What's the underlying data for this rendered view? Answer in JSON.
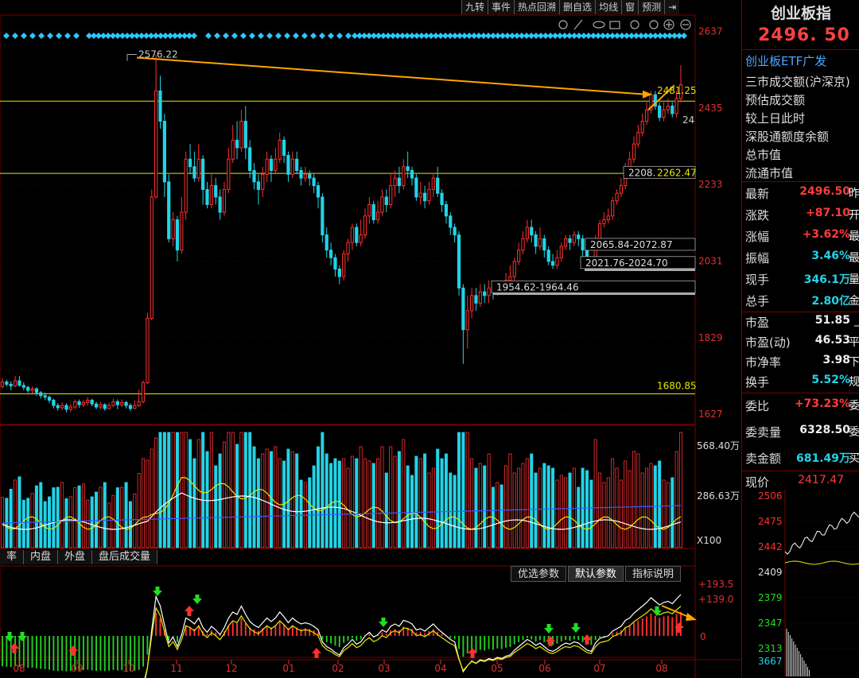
{
  "toolbar": {
    "items": [
      "九转",
      "事件",
      "热点回溯",
      "删自选",
      "均线",
      "窗",
      "预测"
    ]
  },
  "chart_data": {
    "type": "candlestick",
    "x_months": [
      "08",
      "09",
      "10",
      "11",
      "12",
      "01",
      "02",
      "03",
      "04",
      "05",
      "06",
      "07",
      "08"
    ],
    "price_axis": [
      "2637",
      "2435",
      "2233",
      "2031",
      "1829",
      "1627"
    ],
    "ylim": [
      1600,
      2680
    ],
    "annotations": {
      "high": "2576.22",
      "recent_high": "2481.25",
      "low_level": "1680.85",
      "right_edge": "24",
      "zone1": "2208.",
      "zone1b": "2262.47",
      "zone2": "2065.84-2072.87",
      "zone3": "2021.76-2024.70",
      "zone4": "1954.62-1964.46"
    },
    "candles": [
      [
        1700,
        1712,
        1722,
        1696
      ],
      [
        1712,
        1706,
        1718,
        1700
      ],
      [
        1706,
        1702,
        1714,
        1690
      ],
      [
        1702,
        1715,
        1728,
        1698
      ],
      [
        1715,
        1703,
        1728,
        1700
      ],
      [
        1703,
        1698,
        1712,
        1690
      ],
      [
        1698,
        1690,
        1702,
        1684
      ],
      [
        1690,
        1694,
        1700,
        1682
      ],
      [
        1694,
        1684,
        1698,
        1676
      ],
      [
        1684,
        1676,
        1688,
        1668
      ],
      [
        1676,
        1672,
        1684,
        1664
      ],
      [
        1672,
        1664,
        1676,
        1656
      ],
      [
        1664,
        1650,
        1668,
        1642
      ],
      [
        1650,
        1644,
        1656,
        1636
      ],
      [
        1644,
        1650,
        1658,
        1638
      ],
      [
        1650,
        1640,
        1656,
        1632
      ],
      [
        1640,
        1646,
        1654,
        1634
      ],
      [
        1646,
        1660,
        1666,
        1640
      ],
      [
        1660,
        1652,
        1666,
        1644
      ],
      [
        1652,
        1658,
        1664,
        1646
      ],
      [
        1658,
        1664,
        1672,
        1650
      ],
      [
        1664,
        1654,
        1668,
        1648
      ],
      [
        1654,
        1646,
        1660,
        1640
      ],
      [
        1646,
        1652,
        1660,
        1640
      ],
      [
        1652,
        1642,
        1656,
        1636
      ],
      [
        1642,
        1650,
        1658,
        1640
      ],
      [
        1650,
        1660,
        1668,
        1646
      ],
      [
        1660,
        1652,
        1666,
        1640
      ],
      [
        1652,
        1658,
        1666,
        1646
      ],
      [
        1658,
        1650,
        1662,
        1642
      ],
      [
        1650,
        1642,
        1656,
        1636
      ],
      [
        1642,
        1650,
        1664,
        1640
      ],
      [
        1650,
        1660,
        1692,
        1646
      ],
      [
        1660,
        1710,
        1716,
        1656
      ],
      [
        1710,
        1880,
        1895,
        1706
      ],
      [
        1880,
        2200,
        2220,
        1875
      ],
      [
        2200,
        2480,
        2576,
        2196
      ],
      [
        2480,
        2400,
        2520,
        2380
      ],
      [
        2400,
        2240,
        2420,
        2200
      ],
      [
        2240,
        2090,
        2260,
        2080
      ],
      [
        2090,
        2140,
        2160,
        2070
      ],
      [
        2140,
        2060,
        2150,
        2030
      ],
      [
        2060,
        2160,
        2200,
        2050
      ],
      [
        2160,
        2300,
        2320,
        2140
      ],
      [
        2300,
        2280,
        2340,
        2260
      ],
      [
        2280,
        2250,
        2320,
        2240
      ],
      [
        2250,
        2300,
        2340,
        2240
      ],
      [
        2300,
        2220,
        2310,
        2180
      ],
      [
        2220,
        2180,
        2240,
        2170
      ],
      [
        2180,
        2230,
        2260,
        2170
      ],
      [
        2230,
        2200,
        2250,
        2180
      ],
      [
        2200,
        2160,
        2220,
        2140
      ],
      [
        2160,
        2220,
        2240,
        2150
      ],
      [
        2220,
        2300,
        2330,
        2210
      ],
      [
        2300,
        2350,
        2390,
        2290
      ],
      [
        2350,
        2330,
        2400,
        2300
      ],
      [
        2330,
        2400,
        2430,
        2320
      ],
      [
        2400,
        2330,
        2440,
        2300
      ],
      [
        2330,
        2270,
        2350,
        2250
      ],
      [
        2270,
        2240,
        2290,
        2220
      ],
      [
        2240,
        2220,
        2260,
        2180
      ],
      [
        2220,
        2260,
        2280,
        2200
      ],
      [
        2260,
        2300,
        2320,
        2240
      ],
      [
        2300,
        2270,
        2310,
        2240
      ],
      [
        2270,
        2300,
        2330,
        2260
      ],
      [
        2300,
        2350,
        2370,
        2290
      ],
      [
        2350,
        2310,
        2360,
        2290
      ],
      [
        2310,
        2260,
        2320,
        2240
      ],
      [
        2260,
        2300,
        2320,
        2250
      ],
      [
        2300,
        2270,
        2320,
        2260
      ],
      [
        2270,
        2250,
        2280,
        2230
      ],
      [
        2250,
        2260,
        2280,
        2240
      ],
      [
        2260,
        2250,
        2270,
        2230
      ],
      [
        2250,
        2230,
        2260,
        2210
      ],
      [
        2230,
        2200,
        2240,
        2170
      ],
      [
        2200,
        2100,
        2210,
        2080
      ],
      [
        2100,
        2060,
        2120,
        2040
      ],
      [
        2060,
        2040,
        2080,
        2020
      ],
      [
        2040,
        2010,
        2050,
        1990
      ],
      [
        2010,
        1990,
        2020,
        1970
      ],
      [
        1990,
        2050,
        2060,
        1980
      ],
      [
        2050,
        2080,
        2090,
        2030
      ],
      [
        2080,
        2120,
        2130,
        2060
      ],
      [
        2120,
        2080,
        2130,
        2070
      ],
      [
        2080,
        2100,
        2140,
        2070
      ],
      [
        2100,
        2150,
        2170,
        2090
      ],
      [
        2150,
        2180,
        2200,
        2130
      ],
      [
        2180,
        2140,
        2190,
        2130
      ],
      [
        2140,
        2160,
        2190,
        2130
      ],
      [
        2160,
        2200,
        2220,
        2150
      ],
      [
        2200,
        2180,
        2220,
        2160
      ],
      [
        2180,
        2230,
        2260,
        2170
      ],
      [
        2230,
        2250,
        2270,
        2200
      ],
      [
        2250,
        2230,
        2280,
        2210
      ],
      [
        2230,
        2280,
        2300,
        2220
      ],
      [
        2280,
        2270,
        2320,
        2250
      ],
      [
        2270,
        2250,
        2280,
        2230
      ],
      [
        2250,
        2200,
        2260,
        2190
      ],
      [
        2200,
        2210,
        2240,
        2180
      ],
      [
        2210,
        2190,
        2230,
        2170
      ],
      [
        2190,
        2220,
        2240,
        2180
      ],
      [
        2220,
        2250,
        2260,
        2200
      ],
      [
        2250,
        2210,
        2280,
        2200
      ],
      [
        2210,
        2180,
        2220,
        2160
      ],
      [
        2180,
        2150,
        2190,
        2130
      ],
      [
        2150,
        2120,
        2160,
        2100
      ],
      [
        2120,
        2100,
        2130,
        2080
      ],
      [
        2100,
        1960,
        2110,
        1940
      ],
      [
        1960,
        1850,
        1970,
        1760
      ],
      [
        1850,
        1900,
        1940,
        1800
      ],
      [
        1900,
        1940,
        1960,
        1880
      ],
      [
        1940,
        1920,
        1960,
        1900
      ],
      [
        1920,
        1950,
        1970,
        1910
      ],
      [
        1950,
        1940,
        1970,
        1920
      ],
      [
        1940,
        1960,
        1980,
        1920
      ],
      [
        1960,
        1950,
        1970,
        1930
      ],
      [
        1950,
        1970,
        1980,
        1940
      ],
      [
        1970,
        1960,
        1980,
        1950
      ],
      [
        1960,
        1980,
        2000,
        1950
      ],
      [
        1980,
        1990,
        2020,
        1960
      ],
      [
        1990,
        2030,
        2040,
        1980
      ],
      [
        2030,
        2060,
        2080,
        2020
      ],
      [
        2060,
        2090,
        2110,
        2050
      ],
      [
        2090,
        2120,
        2140,
        2080
      ],
      [
        2120,
        2100,
        2140,
        2080
      ],
      [
        2100,
        2070,
        2110,
        2050
      ],
      [
        2070,
        2090,
        2120,
        2060
      ],
      [
        2090,
        2060,
        2100,
        2040
      ],
      [
        2060,
        2030,
        2070,
        2020
      ],
      [
        2030,
        2020,
        2050,
        2010
      ],
      [
        2020,
        2040,
        2060,
        2010
      ],
      [
        2040,
        2070,
        2080,
        2030
      ],
      [
        2070,
        2090,
        2100,
        2060
      ],
      [
        2090,
        2080,
        2100,
        2060
      ],
      [
        2080,
        2100,
        2110,
        2070
      ],
      [
        2100,
        2090,
        2110,
        2070
      ],
      [
        2090,
        2060,
        2100,
        2040
      ],
      [
        2060,
        2030,
        2070,
        2020
      ],
      [
        2030,
        2020,
        2040,
        2010
      ],
      [
        2020,
        2090,
        2100,
        2020
      ],
      [
        2090,
        2130,
        2140,
        2080
      ],
      [
        2130,
        2140,
        2160,
        2120
      ],
      [
        2140,
        2150,
        2170,
        2130
      ],
      [
        2150,
        2190,
        2200,
        2140
      ],
      [
        2190,
        2210,
        2220,
        2180
      ],
      [
        2210,
        2230,
        2250,
        2200
      ],
      [
        2230,
        2280,
        2290,
        2220
      ],
      [
        2280,
        2300,
        2320,
        2270
      ],
      [
        2300,
        2340,
        2360,
        2290
      ],
      [
        2340,
        2370,
        2390,
        2330
      ],
      [
        2370,
        2400,
        2420,
        2360
      ],
      [
        2400,
        2430,
        2450,
        2390
      ],
      [
        2430,
        2470,
        2480,
        2420
      ],
      [
        2470,
        2440,
        2480,
        2430
      ],
      [
        2440,
        2410,
        2450,
        2400
      ],
      [
        2410,
        2430,
        2450,
        2400
      ],
      [
        2430,
        2440,
        2460,
        2420
      ],
      [
        2440,
        2420,
        2450,
        2410
      ],
      [
        2420,
        2460,
        2480,
        2410
      ],
      [
        2460,
        2496,
        2548,
        2450
      ]
    ],
    "volume_axis": [
      "568.40万",
      "286.63万"
    ],
    "volume_unit": "X100",
    "indicator_axis": [
      "+193.5",
      "+139.0",
      "0"
    ],
    "volume_tabs": [
      "率",
      "内盘",
      "外盘",
      "盘后成交量"
    ],
    "indicator_tabs": [
      "优选参数",
      "默认参数",
      "指标说明"
    ]
  },
  "quote": {
    "title": "创业板指",
    "price": "2496. 50",
    "etf": "创业板ETF广发",
    "info_rows": [
      "三市成交额(沪深京)",
      "预估成交额",
      "较上日此时",
      "深股通额度余额",
      "总市值",
      "流通市值"
    ],
    "stats": [
      {
        "k": "最新",
        "v": "2496.50",
        "c": "red",
        "s": "昨"
      },
      {
        "k": "涨跌",
        "v": "+87.10",
        "c": "red",
        "s": "开"
      },
      {
        "k": "涨幅",
        "v": "+3.62%",
        "c": "red",
        "s": "最"
      },
      {
        "k": "振幅",
        "v": "3.46%",
        "c": "cyan",
        "s": "最"
      },
      {
        "k": "现手",
        "v": "346.1万",
        "c": "cyan",
        "s": "量"
      },
      {
        "k": "总手",
        "v": "2.80亿",
        "c": "cyan",
        "s": "金"
      }
    ],
    "ratios": [
      {
        "k": "市盈",
        "v": "51.85",
        "c": "white",
        "s": "_"
      },
      {
        "k": "市盈(动)",
        "v": "46.53",
        "c": "white",
        "s": "平"
      },
      {
        "k": "市净率",
        "v": "3.98",
        "c": "white",
        "s": "下"
      },
      {
        "k": "换手",
        "v": "5.52%",
        "c": "cyan",
        "s": "规"
      }
    ],
    "orders": [
      {
        "k": "委比",
        "v": "+73.23%",
        "c": "red",
        "s": "委"
      },
      {
        "k": "委卖量",
        "v": "6328.50",
        "c": "white",
        "s": "委"
      },
      {
        "k": "卖金额",
        "v": "681.49万",
        "c": "cyan",
        "s": "买"
      }
    ],
    "mini": {
      "label": "现价",
      "value": "2417.47",
      "axis": [
        "2506",
        "2475",
        "2442",
        "2409",
        "2379",
        "2347",
        "2313"
      ],
      "vol": "3667"
    }
  }
}
